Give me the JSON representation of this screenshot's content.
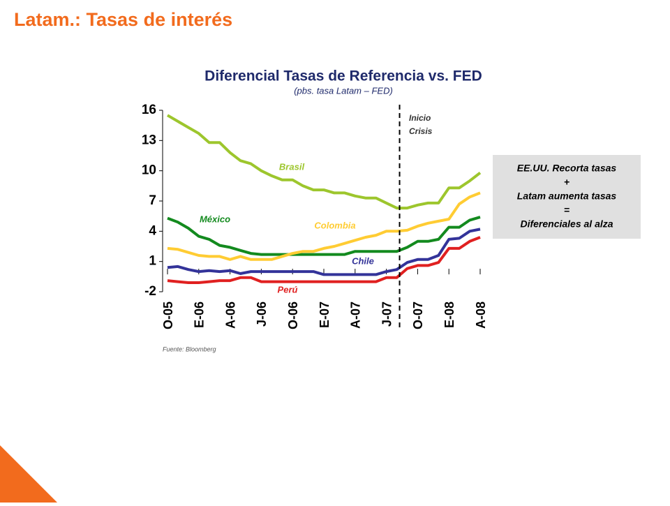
{
  "page_title": "Latam.: Tasas de interés",
  "chart_data": {
    "type": "line",
    "title": "Diferencial Tasas de Referencia vs. FED",
    "subtitle": "(pbs. tasa Latam – FED)",
    "source": "Fuente: Bloomberg",
    "categories": [
      "O-05",
      null,
      null,
      "E-06",
      null,
      null,
      "A-06",
      null,
      null,
      "J-06",
      null,
      null,
      "O-06",
      null,
      null,
      "E-07",
      null,
      null,
      "A-07",
      null,
      null,
      "J-07",
      null,
      null,
      "O-07",
      null,
      null,
      "E-08",
      null,
      null,
      "A-08"
    ],
    "ylim": [
      -2,
      16
    ],
    "yticks": [
      -2,
      1,
      4,
      7,
      10,
      13,
      16
    ],
    "series": [
      {
        "name": "Brasil",
        "color": "#9dc62d",
        "values": [
          15.5,
          14.9,
          14.3,
          13.7,
          12.8,
          12.8,
          11.8,
          11.0,
          10.7,
          10.0,
          9.5,
          9.1,
          9.1,
          8.5,
          8.1,
          8.1,
          7.8,
          7.8,
          7.5,
          7.3,
          7.3,
          6.8,
          6.3,
          6.3,
          6.6,
          6.8,
          6.8,
          8.3,
          8.3,
          9.0,
          9.8
        ]
      },
      {
        "name": "México",
        "color": "#138a1e",
        "values": [
          5.3,
          4.9,
          4.3,
          3.5,
          3.2,
          2.6,
          2.4,
          2.1,
          1.8,
          1.7,
          1.7,
          1.7,
          1.7,
          1.7,
          1.7,
          1.7,
          1.7,
          1.7,
          2.0,
          2.0,
          2.0,
          2.0,
          2.0,
          2.4,
          3.0,
          3.0,
          3.2,
          4.4,
          4.4,
          5.1,
          5.4
        ]
      },
      {
        "name": "Colombia",
        "color": "#ffcc33",
        "values": [
          2.3,
          2.2,
          1.9,
          1.6,
          1.5,
          1.5,
          1.2,
          1.5,
          1.2,
          1.2,
          1.2,
          1.5,
          1.8,
          2.0,
          2.0,
          2.3,
          2.5,
          2.8,
          3.1,
          3.4,
          3.6,
          4.0,
          4.0,
          4.1,
          4.5,
          4.8,
          5.0,
          5.2,
          6.7,
          7.4,
          7.8
        ]
      },
      {
        "name": "Chile",
        "color": "#333399",
        "values": [
          0.4,
          0.5,
          0.2,
          0.0,
          0.1,
          0.0,
          0.1,
          -0.2,
          0.0,
          0.0,
          0.0,
          0.0,
          0.0,
          0.0,
          0.0,
          -0.3,
          -0.3,
          -0.3,
          -0.3,
          -0.3,
          -0.3,
          0.0,
          0.2,
          0.9,
          1.2,
          1.2,
          1.6,
          3.2,
          3.3,
          4.0,
          4.2
        ]
      },
      {
        "name": "Perú",
        "color": "#e02020",
        "values": [
          -0.9,
          -1.0,
          -1.1,
          -1.1,
          -1.0,
          -0.9,
          -0.9,
          -0.6,
          -0.6,
          -1.0,
          -1.0,
          -1.0,
          -1.0,
          -1.0,
          -1.0,
          -1.0,
          -1.0,
          -1.0,
          -1.0,
          -1.0,
          -1.0,
          -0.6,
          -0.6,
          0.3,
          0.6,
          0.6,
          0.9,
          2.3,
          2.3,
          3.0,
          3.4
        ]
      }
    ],
    "marker": {
      "x": 22,
      "lines": [
        "Inicio",
        "Crisis"
      ]
    },
    "note": [
      "EE.UU. Recorta tasas",
      "+",
      "Latam aumenta tasas",
      "=",
      "Diferenciales al alza"
    ]
  }
}
